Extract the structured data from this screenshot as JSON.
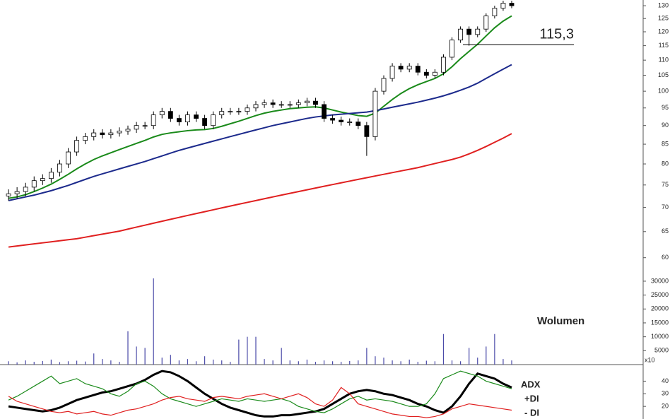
{
  "chart_data": [
    {
      "type": "candlestick",
      "x": [
        1,
        2,
        3,
        4,
        5,
        6,
        7,
        8,
        9,
        10,
        11,
        12,
        13,
        14,
        15,
        16,
        17,
        18,
        19,
        20,
        21,
        22,
        23,
        24,
        25,
        26,
        27,
        28,
        29,
        30,
        31,
        32,
        33,
        34,
        35,
        36,
        37,
        38,
        39,
        40,
        41,
        42,
        43,
        44,
        45,
        46,
        47,
        48,
        49,
        50,
        51,
        52,
        53,
        54,
        55,
        56,
        57,
        58,
        59,
        60
      ],
      "xlim": [
        0,
        75
      ],
      "open": [
        72.5,
        73,
        73.5,
        74.5,
        76,
        76.5,
        78,
        80,
        83,
        86,
        87,
        88,
        87.5,
        88,
        88.5,
        89,
        90,
        90,
        93,
        94,
        92,
        91,
        93,
        92,
        90,
        93,
        94,
        94,
        94,
        95,
        96,
        96.5,
        96,
        96,
        96,
        96.5,
        97,
        96,
        92,
        91.5,
        91,
        91,
        90,
        87,
        100,
        104,
        108,
        107,
        108,
        106,
        105,
        106,
        111,
        117,
        121,
        119,
        121,
        126,
        129,
        131
      ],
      "high": [
        74,
        74.5,
        75.5,
        77,
        77.5,
        79,
        81,
        84,
        87,
        88,
        89,
        89,
        89,
        89.5,
        90,
        91,
        91,
        94,
        95,
        95,
        93,
        94,
        94,
        93,
        94,
        95,
        95,
        95,
        96,
        97,
        97.5,
        97.5,
        97,
        97,
        97.5,
        98,
        98,
        97,
        93,
        92.5,
        92,
        92,
        91,
        101,
        105,
        109,
        109,
        109,
        109,
        107,
        107,
        112,
        118,
        122,
        122,
        122,
        127,
        130,
        132,
        132
      ],
      "low": [
        71.5,
        72,
        72.5,
        73.5,
        75,
        75.5,
        77,
        79,
        82,
        85,
        86,
        86.5,
        86.5,
        87,
        87.5,
        88,
        89,
        89,
        92,
        91,
        90,
        90,
        91,
        89,
        89,
        92,
        93,
        93,
        93,
        94,
        95,
        95,
        95,
        95,
        95,
        95.5,
        95,
        91,
        90.5,
        90,
        90,
        89,
        82,
        86,
        99,
        103,
        106,
        106,
        105,
        104,
        104,
        105,
        110,
        116,
        115,
        118,
        120,
        125,
        128,
        129
      ],
      "close": [
        73,
        73.5,
        74.5,
        76,
        76.5,
        78,
        80,
        83,
        86,
        87,
        88,
        87.5,
        88,
        88.5,
        89,
        90,
        90,
        93,
        94,
        92,
        91,
        93,
        92,
        90,
        93,
        94,
        94,
        94,
        95,
        96,
        96.5,
        96,
        96,
        96,
        96.5,
        97,
        96,
        92,
        91.5,
        91,
        91,
        90,
        87,
        100,
        104,
        108,
        107,
        108,
        106,
        105,
        106,
        111,
        117,
        121,
        119,
        121,
        126,
        129,
        131,
        130
      ],
      "ylim": [
        56.8,
        132.3
      ],
      "log_scale": true,
      "yticks": [
        60,
        65,
        70,
        75,
        80,
        85,
        90,
        95,
        100,
        105,
        110,
        115,
        120,
        125,
        130
      ],
      "overlays": [
        {
          "color": "#1a8a1a",
          "values": [
            72,
            72.3,
            72.8,
            73.5,
            74.3,
            75.2,
            76.3,
            77.5,
            78.8,
            80,
            81.1,
            82,
            82.8,
            83.6,
            84.4,
            85.2,
            86,
            86.9,
            87.6,
            88,
            88.3,
            88.6,
            88.8,
            88.9,
            89.2,
            89.8,
            90.5,
            91.2,
            92,
            92.8,
            93.5,
            94,
            94.4,
            94.8,
            95,
            95.2,
            95.3,
            95,
            94.4,
            93.8,
            93.3,
            92.8,
            92.6,
            93.5,
            95.5,
            97.5,
            99.3,
            100.8,
            102,
            103,
            104,
            105.5,
            107.8,
            110.5,
            113,
            115.5,
            118.5,
            121.5,
            124,
            126
          ]
        },
        {
          "color": "#1c2a8c",
          "values": [
            71.5,
            71.9,
            72.3,
            72.7,
            73.2,
            73.7,
            74.3,
            74.9,
            75.6,
            76.3,
            77,
            77.6,
            78.2,
            78.8,
            79.4,
            80,
            80.6,
            81.3,
            82,
            82.7,
            83.4,
            84,
            84.6,
            85.2,
            85.8,
            86.4,
            87,
            87.6,
            88.2,
            88.8,
            89.4,
            90,
            90.5,
            91,
            91.5,
            92,
            92.4,
            92.7,
            93,
            93.2,
            93.4,
            93.6,
            93.8,
            94.2,
            94.7,
            95.2,
            95.7,
            96.2,
            96.7,
            97.3,
            97.9,
            98.6,
            99.4,
            100.3,
            101.3,
            102.5,
            104,
            105.5,
            107,
            108.5
          ]
        },
        {
          "color": "#e02020",
          "values": [
            62,
            62.2,
            62.4,
            62.6,
            62.8,
            63,
            63.2,
            63.4,
            63.6,
            63.9,
            64.2,
            64.5,
            64.8,
            65.1,
            65.5,
            65.9,
            66.3,
            66.7,
            67.1,
            67.5,
            67.9,
            68.3,
            68.7,
            69.1,
            69.5,
            69.9,
            70.3,
            70.7,
            71.1,
            71.5,
            71.9,
            72.3,
            72.7,
            73.1,
            73.5,
            73.9,
            74.3,
            74.7,
            75.1,
            75.5,
            75.9,
            76.3,
            76.7,
            77.1,
            77.5,
            77.9,
            78.3,
            78.7,
            79.1,
            79.6,
            80.1,
            80.6,
            81.1,
            81.7,
            82.5,
            83.4,
            84.4,
            85.5,
            86.6,
            87.8
          ]
        }
      ],
      "annotation": {
        "text": "115,3",
        "value": 115.3
      }
    },
    {
      "type": "bar",
      "label": "Wolumen",
      "unit_label": "x10",
      "color": "#4a4aa8",
      "x": [
        1,
        2,
        3,
        4,
        5,
        6,
        7,
        8,
        9,
        10,
        11,
        12,
        13,
        14,
        15,
        16,
        17,
        18,
        19,
        20,
        21,
        22,
        23,
        24,
        25,
        26,
        27,
        28,
        29,
        30,
        31,
        32,
        33,
        34,
        35,
        36,
        37,
        38,
        39,
        40,
        41,
        42,
        43,
        44,
        45,
        46,
        47,
        48,
        49,
        50,
        51,
        52,
        53,
        54,
        55,
        56,
        57,
        58,
        59,
        60
      ],
      "xlim": [
        0,
        75
      ],
      "values": [
        1200,
        800,
        1500,
        1000,
        1300,
        1800,
        900,
        1200,
        1400,
        1100,
        4000,
        2000,
        1500,
        1000,
        12000,
        6500,
        6000,
        31000,
        2500,
        3500,
        1500,
        2000,
        1200,
        3000,
        1800,
        1500,
        1000,
        9000,
        10000,
        10000,
        2000,
        1500,
        6000,
        1500,
        1200,
        1800,
        1000,
        1500,
        1200,
        1000,
        1300,
        1500,
        6000,
        3000,
        2500,
        1500,
        1200,
        1800,
        1000,
        1400,
        1200,
        11000,
        1500,
        1200,
        6000,
        2500,
        6500,
        11000,
        2000,
        1500
      ],
      "ylim": [
        0,
        31000
      ],
      "yticks": [
        5000,
        10000,
        15000,
        20000,
        25000,
        30000
      ]
    },
    {
      "type": "line",
      "x": [
        1,
        2,
        3,
        4,
        5,
        6,
        7,
        8,
        9,
        10,
        11,
        12,
        13,
        14,
        15,
        16,
        17,
        18,
        19,
        20,
        21,
        22,
        23,
        24,
        25,
        26,
        27,
        28,
        29,
        30,
        31,
        32,
        33,
        34,
        35,
        36,
        37,
        38,
        39,
        40,
        41,
        42,
        43,
        44,
        45,
        46,
        47,
        48,
        49,
        50,
        51,
        52,
        53,
        54,
        55,
        56,
        57,
        58,
        59,
        60
      ],
      "xlim": [
        0,
        75
      ],
      "series": [
        {
          "name": "ADX",
          "color": "#000000",
          "width": 3,
          "values": [
            20,
            19,
            18,
            17,
            16,
            17,
            19,
            22,
            25,
            27,
            29,
            31,
            32,
            34,
            36,
            38,
            41,
            45,
            48,
            47,
            44,
            40,
            35,
            30,
            26,
            22,
            19,
            17,
            15,
            13,
            12,
            12,
            13,
            13,
            14,
            15,
            16,
            18,
            22,
            26,
            30,
            32,
            33,
            32,
            30,
            29,
            27,
            25,
            22,
            20,
            17,
            15,
            20,
            28,
            38,
            46,
            44,
            42,
            38,
            35
          ]
        },
        {
          "name": "+DI",
          "color": "#1a8a1a",
          "width": 1.2,
          "values": [
            25,
            28,
            32,
            36,
            40,
            44,
            38,
            40,
            42,
            38,
            36,
            34,
            30,
            28,
            32,
            38,
            40,
            36,
            30,
            26,
            24,
            22,
            20,
            22,
            24,
            26,
            25,
            24,
            26,
            25,
            24,
            25,
            26,
            24,
            20,
            18,
            16,
            15,
            18,
            22,
            26,
            28,
            25,
            26,
            25,
            24,
            22,
            20,
            20,
            22,
            30,
            42,
            45,
            48,
            46,
            44,
            40,
            38,
            36,
            34
          ]
        },
        {
          "name": "- DI",
          "color": "#e02020",
          "width": 1.2,
          "values": [
            28,
            24,
            22,
            20,
            18,
            16,
            15,
            16,
            14,
            15,
            16,
            14,
            13,
            15,
            17,
            18,
            20,
            22,
            25,
            27,
            28,
            26,
            25,
            24,
            27,
            28,
            27,
            26,
            28,
            29,
            30,
            28,
            26,
            28,
            30,
            27,
            22,
            20,
            25,
            35,
            30,
            22,
            20,
            18,
            16,
            14,
            13,
            12,
            12,
            11,
            12,
            14,
            18,
            20,
            22,
            21,
            20,
            19,
            18,
            17
          ]
        }
      ],
      "ylim": [
        10,
        52
      ],
      "yticks": [
        20,
        30,
        40
      ]
    }
  ]
}
